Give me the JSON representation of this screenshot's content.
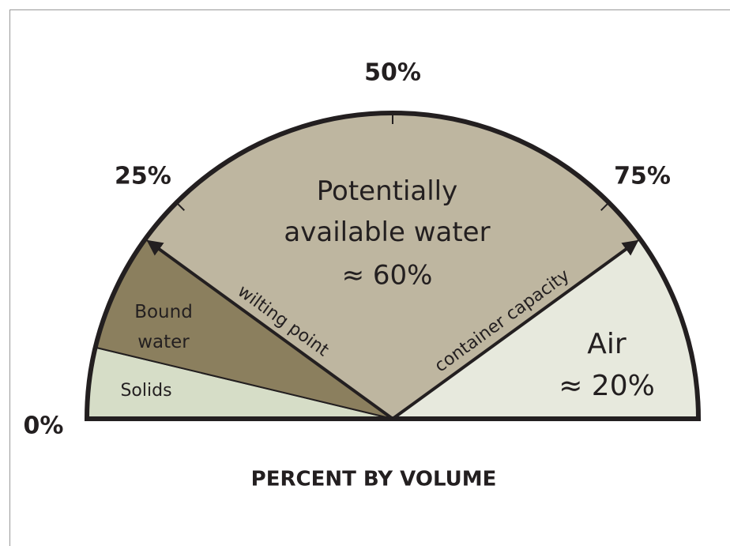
{
  "chart_data": {
    "type": "semicircle",
    "xlabel": "PERCENT BY VOLUME",
    "xlim": [
      0,
      100
    ],
    "xticks": [
      {
        "value": 0,
        "label": "0%"
      },
      {
        "value": 25,
        "label": "25%"
      },
      {
        "value": 50,
        "label": "50%"
      },
      {
        "value": 75,
        "label": "75%"
      }
    ],
    "series": [
      {
        "name": "Solids",
        "color": "#d6ddc7",
        "value": 7.5
      },
      {
        "name": "Bound water",
        "color": "#8b7f5e",
        "value": 12.5
      },
      {
        "name": "Potentially available water",
        "color": "#beb6a0",
        "value": 60,
        "value_label": "≈ 60%"
      },
      {
        "name": "Air",
        "color": "#e7e9dd",
        "value": 20,
        "value_label": "≈ 20%"
      }
    ],
    "boundaries": [
      "wilting point",
      "container capacity"
    ]
  }
}
